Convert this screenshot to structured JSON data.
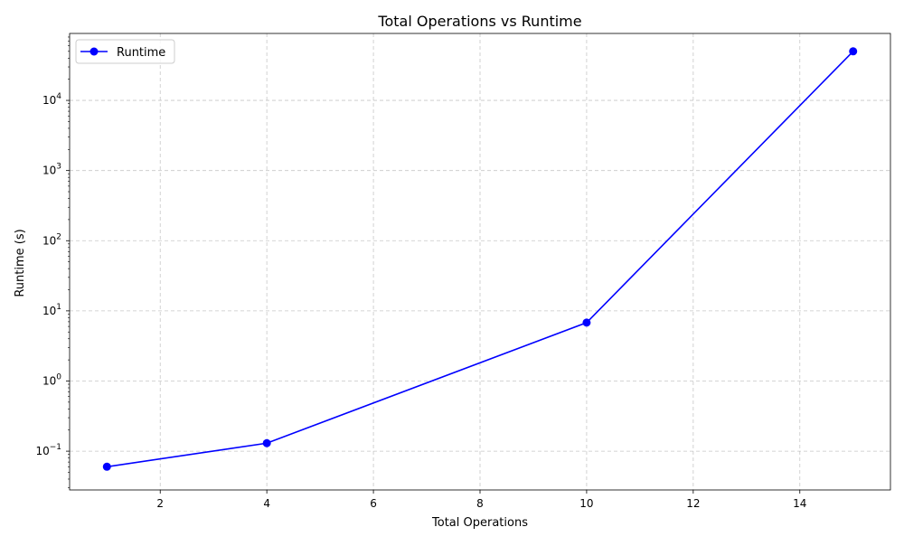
{
  "chart_data": {
    "type": "line",
    "title": "Total Operations vs Runtime",
    "xlabel": "Total Operations",
    "ylabel": "Runtime (s)",
    "xscale": "linear",
    "yscale": "log",
    "xlim": [
      0.3,
      15.7
    ],
    "ylim": [
      0.028,
      90000
    ],
    "grid": true,
    "legend_position": "top-left",
    "x_ticks": [
      2,
      4,
      6,
      8,
      10,
      12,
      14
    ],
    "x_tick_labels": [
      "2",
      "4",
      "6",
      "8",
      "10",
      "12",
      "14"
    ],
    "y_major_ticks": [
      0.1,
      1,
      10,
      100,
      1000,
      10000
    ],
    "y_tick_labels": [
      {
        "base": "10",
        "exp": "−1"
      },
      {
        "base": "10",
        "exp": "0"
      },
      {
        "base": "10",
        "exp": "1"
      },
      {
        "base": "10",
        "exp": "2"
      },
      {
        "base": "10",
        "exp": "3"
      },
      {
        "base": "10",
        "exp": "4"
      }
    ],
    "series": [
      {
        "name": "Runtime",
        "color": "#0000ff",
        "marker": "circle",
        "x": [
          1,
          4,
          10,
          15
        ],
        "y": [
          0.06,
          0.13,
          6.8,
          50000
        ]
      }
    ]
  }
}
